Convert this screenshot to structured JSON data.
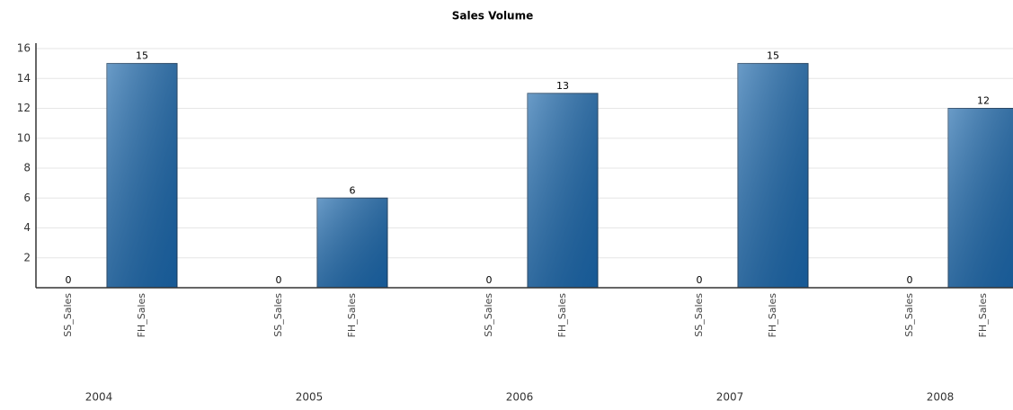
{
  "chart_data": {
    "type": "bar",
    "title": "Sales Volume",
    "categories": [
      "2004",
      "2005",
      "2006",
      "2007",
      "2008"
    ],
    "series": [
      {
        "name": "SS_Sales",
        "color": "#1a66aa",
        "values": [
          0,
          0,
          0,
          0,
          0
        ]
      },
      {
        "name": "FH_Sales",
        "color": "#1a66aa",
        "values": [
          15,
          6,
          13,
          15,
          12
        ]
      }
    ],
    "ylim": [
      0,
      16
    ],
    "yticks": [
      2,
      4,
      6,
      8,
      10,
      12,
      14,
      16
    ],
    "grid": true
  }
}
